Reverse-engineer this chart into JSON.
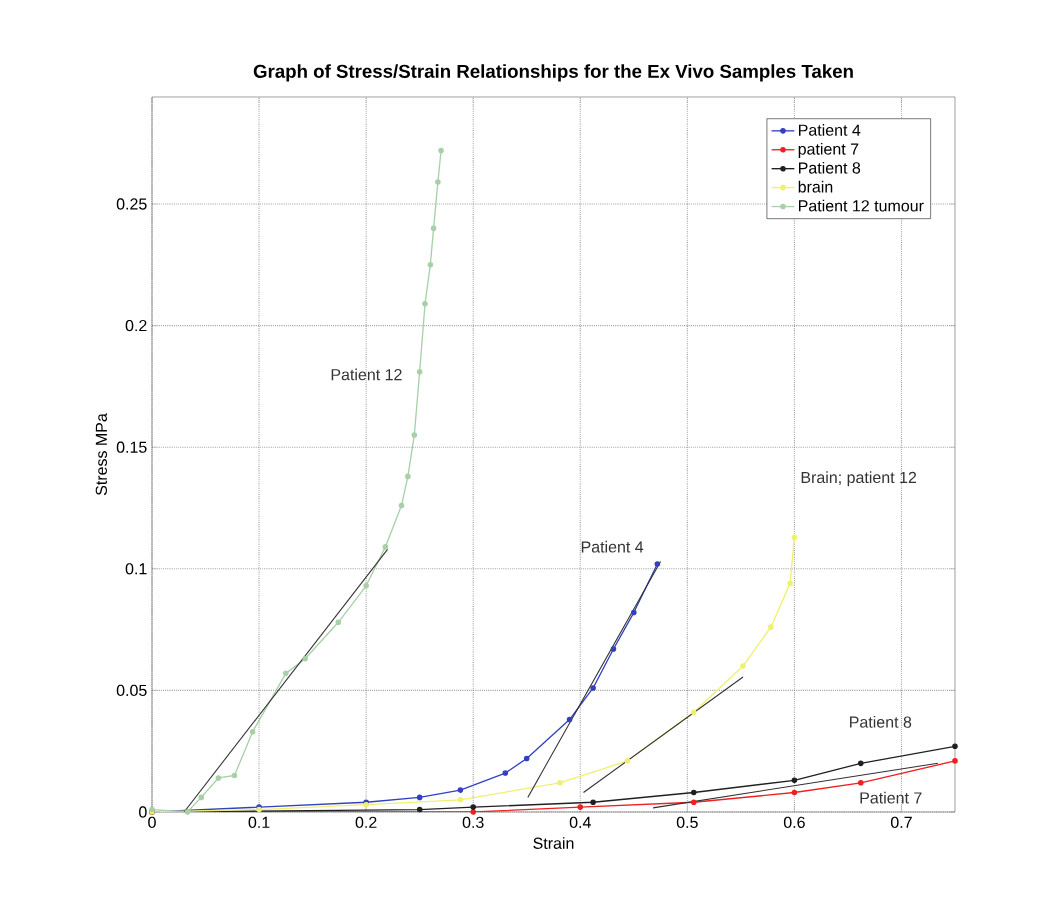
{
  "chart_data": {
    "type": "line",
    "title": "Graph of Stress/Strain Relationships for the Ex Vivo Samples Taken",
    "xlabel": "Strain",
    "ylabel": "Stress MPa",
    "xlim": [
      0,
      0.75
    ],
    "ylim": [
      0,
      0.294
    ],
    "xticks": [
      0,
      0.1,
      0.2,
      0.3,
      0.4,
      0.5,
      0.6,
      0.7
    ],
    "yticks": [
      0,
      0.05,
      0.1,
      0.15,
      0.2,
      0.25
    ],
    "grid": true,
    "legend": "top right",
    "marker": "circle",
    "series": [
      {
        "name": "Patient 4",
        "color": "#3340c0",
        "x": [
          0,
          0.1,
          0.2,
          0.25,
          0.288,
          0.33,
          0.35,
          0.39,
          0.412,
          0.431,
          0.45,
          0.472
        ],
        "values": [
          0,
          0.002,
          0.004,
          0.006,
          0.009,
          0.016,
          0.022,
          0.038,
          0.051,
          0.067,
          0.082,
          0.102
        ]
      },
      {
        "name": "patient 7",
        "color": "#ee2020",
        "x": [
          0,
          0.3,
          0.4,
          0.506,
          0.6,
          0.662,
          0.75
        ],
        "values": [
          0,
          0,
          0.002,
          0.004,
          0.008,
          0.012,
          0.021
        ]
      },
      {
        "name": "Patient 8",
        "color": "#202020",
        "x": [
          0,
          0.25,
          0.3,
          0.412,
          0.506,
          0.6,
          0.662,
          0.75
        ],
        "values": [
          0,
          0.001,
          0.002,
          0.004,
          0.008,
          0.013,
          0.02,
          0.027
        ]
      },
      {
        "name": "brain",
        "color": "#f0f070",
        "x": [
          0,
          0.1,
          0.2,
          0.288,
          0.381,
          0.444,
          0.506,
          0.552,
          0.578,
          0.596,
          0.6
        ],
        "values": [
          0,
          0.001,
          0.003,
          0.005,
          0.012,
          0.021,
          0.041,
          0.06,
          0.076,
          0.094,
          0.113
        ]
      },
      {
        "name": "Patient 12 tumour",
        "color": "#a8d0a8",
        "x": [
          0,
          0.033,
          0.046,
          0.062,
          0.077,
          0.094,
          0.125,
          0.143,
          0.174,
          0.2,
          0.218,
          0.233,
          0.239,
          0.245,
          0.25,
          0.255,
          0.26,
          0.263,
          0.267,
          0.27
        ],
        "values": [
          0.001,
          0,
          0.006,
          0.014,
          0.015,
          0.033,
          0.057,
          0.063,
          0.078,
          0.093,
          0.109,
          0.126,
          0.138,
          0.155,
          0.181,
          0.209,
          0.225,
          0.24,
          0.259,
          0.272
        ]
      },
      {
        "type": "line",
        "color": "#303030",
        "marker": "none",
        "x": [
          0.03,
          0.22
        ],
        "values": [
          0,
          0.108
        ]
      },
      {
        "type": "line",
        "color": "#303030",
        "marker": "none",
        "x": [
          0.351,
          0.475
        ],
        "values": [
          0.006,
          0.103
        ]
      },
      {
        "type": "line",
        "color": "#303030",
        "marker": "none",
        "x": [
          0.403,
          0.552
        ],
        "values": [
          0.008,
          0.0555
        ]
      },
      {
        "type": "line",
        "color": "#303030",
        "marker": "none",
        "x": [
          0.468,
          0.734
        ],
        "values": [
          0.0017,
          0.02
        ]
      }
    ],
    "annotations": [
      "Patient 12",
      "Patient 4",
      "Brain; patient 12",
      "Patient 8",
      "Patient 7"
    ]
  }
}
